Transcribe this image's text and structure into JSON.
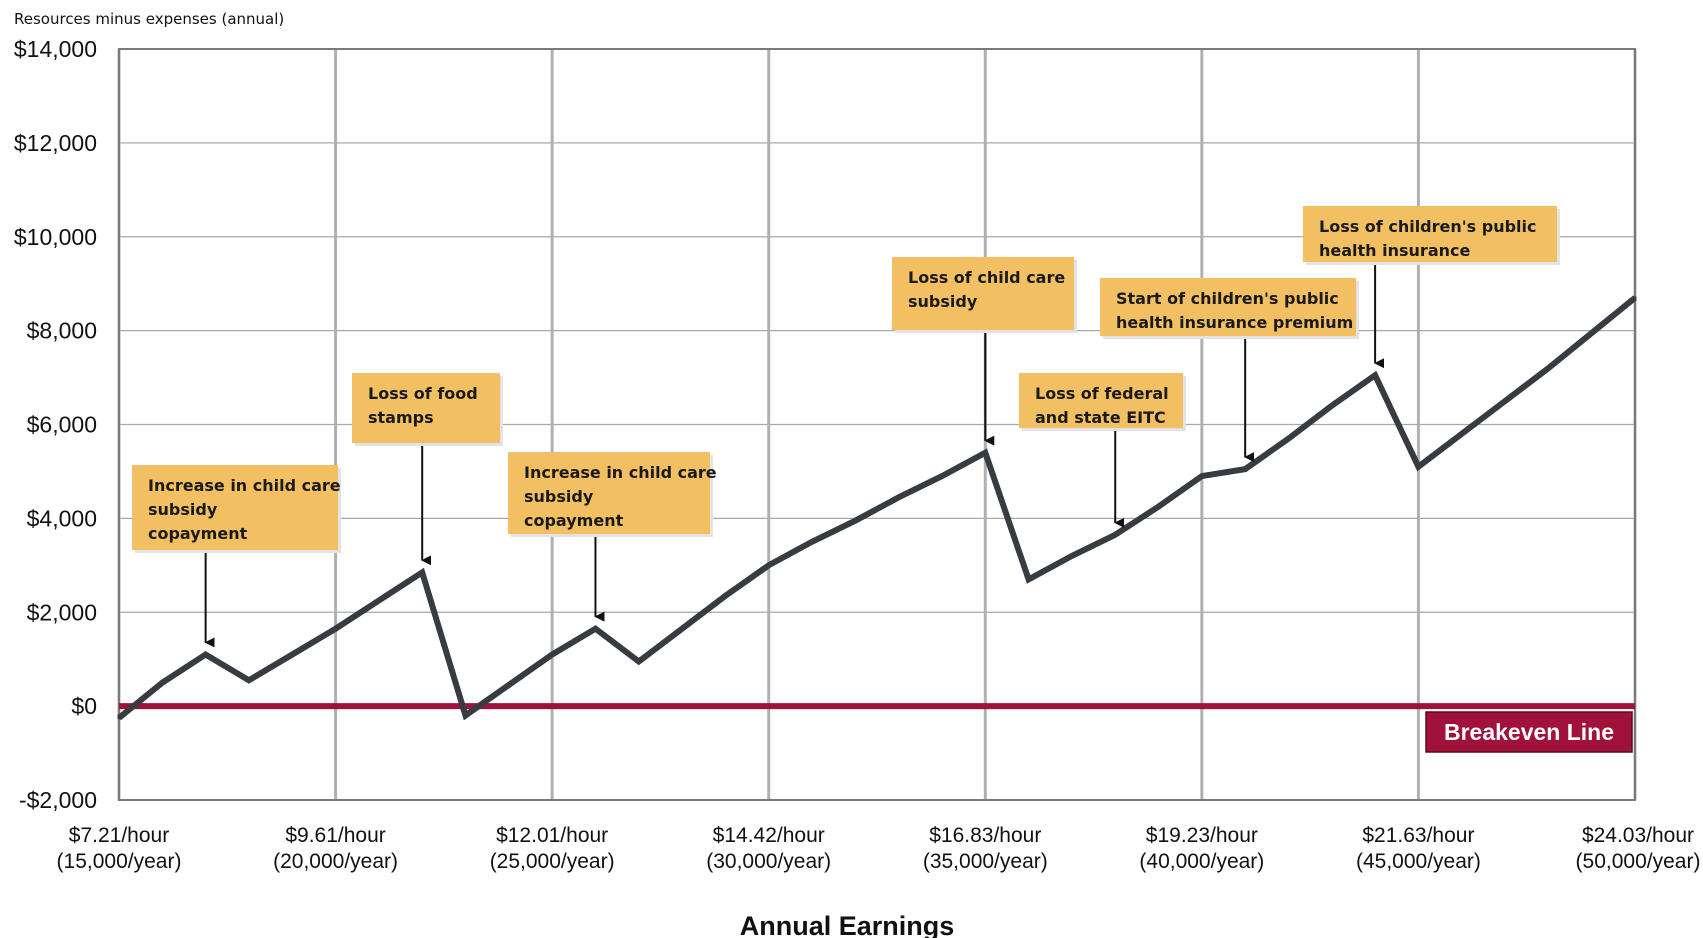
{
  "chart_data": {
    "type": "line",
    "ylabel": "Resources minus expenses (annual)",
    "xlabel": "Annual Earnings",
    "ylim": [
      -2000,
      14000
    ],
    "xlim": [
      15000,
      50000
    ],
    "grid": true,
    "y_ticks": [
      {
        "value": -2000,
        "label": "-$2,000"
      },
      {
        "value": 0,
        "label": "$0"
      },
      {
        "value": 2000,
        "label": "$2,000"
      },
      {
        "value": 4000,
        "label": "$4,000"
      },
      {
        "value": 6000,
        "label": "$6,000"
      },
      {
        "value": 8000,
        "label": "$8,000"
      },
      {
        "value": 10000,
        "label": "$10,000"
      },
      {
        "value": 12000,
        "label": "$12,000"
      },
      {
        "value": 14000,
        "label": "$14,000"
      }
    ],
    "x_ticks": [
      {
        "value": 15000,
        "line1": "$7.21/hour",
        "line2": "(15,000/year)"
      },
      {
        "value": 20000,
        "line1": "$9.61/hour",
        "line2": "(20,000/year)"
      },
      {
        "value": 25000,
        "line1": "$12.01/hour",
        "line2": "(25,000/year)"
      },
      {
        "value": 30000,
        "line1": "$14.42/hour",
        "line2": "(30,000/year)"
      },
      {
        "value": 35000,
        "line1": "$16.83/hour",
        "line2": "(35,000/year)"
      },
      {
        "value": 40000,
        "line1": "$19.23/hour",
        "line2": "(40,000/year)"
      },
      {
        "value": 45000,
        "line1": "$21.63/hour",
        "line2": "(45,000/year)"
      },
      {
        "value": 50000,
        "line1": "$24.03/hour",
        "line2": "(50,000/year)"
      }
    ],
    "series": [
      {
        "color": "#363c42",
        "x": [
          15000,
          16000,
          17000,
          18000,
          19000,
          20000,
          21000,
          22000,
          23000,
          24000,
          25000,
          26000,
          27000,
          28000,
          29000,
          30000,
          31000,
          32000,
          33000,
          34000,
          35000,
          36000,
          37000,
          38000,
          39000,
          40000,
          41000,
          42000,
          43000,
          44000,
          45000,
          46000,
          47000,
          48000,
          49000,
          50000
        ],
        "y": [
          -250,
          500,
          1100,
          550,
          1100,
          1650,
          2250,
          2850,
          -200,
          450,
          1100,
          1650,
          950,
          1650,
          2350,
          3000,
          3500,
          3950,
          4450,
          4900,
          5400,
          2700,
          3200,
          3650,
          4250,
          4900,
          5050,
          5700,
          6400,
          7050,
          5100,
          5800,
          6500,
          7200,
          7950,
          8700
        ]
      }
    ],
    "reference_line": {
      "value": 0,
      "label": "Breakeven Line",
      "color": "#a0123a"
    },
    "annotations": [
      {
        "lines": [
          "Increase in child care",
          "subsidy",
          "copayment"
        ],
        "target_x": 17000,
        "target_y": 1100
      },
      {
        "lines": [
          "Loss of food",
          "stamps"
        ],
        "target_x": 22000,
        "target_y": 2850
      },
      {
        "lines": [
          "Increase in child care",
          "subsidy",
          "copayment"
        ],
        "target_x": 26000,
        "target_y": 1650
      },
      {
        "lines": [
          "Loss of child care",
          "subsidy"
        ],
        "target_x": 35000,
        "target_y": 5400
      },
      {
        "lines": [
          "Loss of federal",
          "and state EITC"
        ],
        "target_x": 38000,
        "target_y": 3650
      },
      {
        "lines": [
          "Start of children's public",
          "health insurance premium"
        ],
        "target_x": 41000,
        "target_y": 5050
      },
      {
        "lines": [
          "Loss of children's public",
          "health insurance"
        ],
        "target_x": 44000,
        "target_y": 7050
      }
    ],
    "annotation_color": "#f2c063"
  }
}
